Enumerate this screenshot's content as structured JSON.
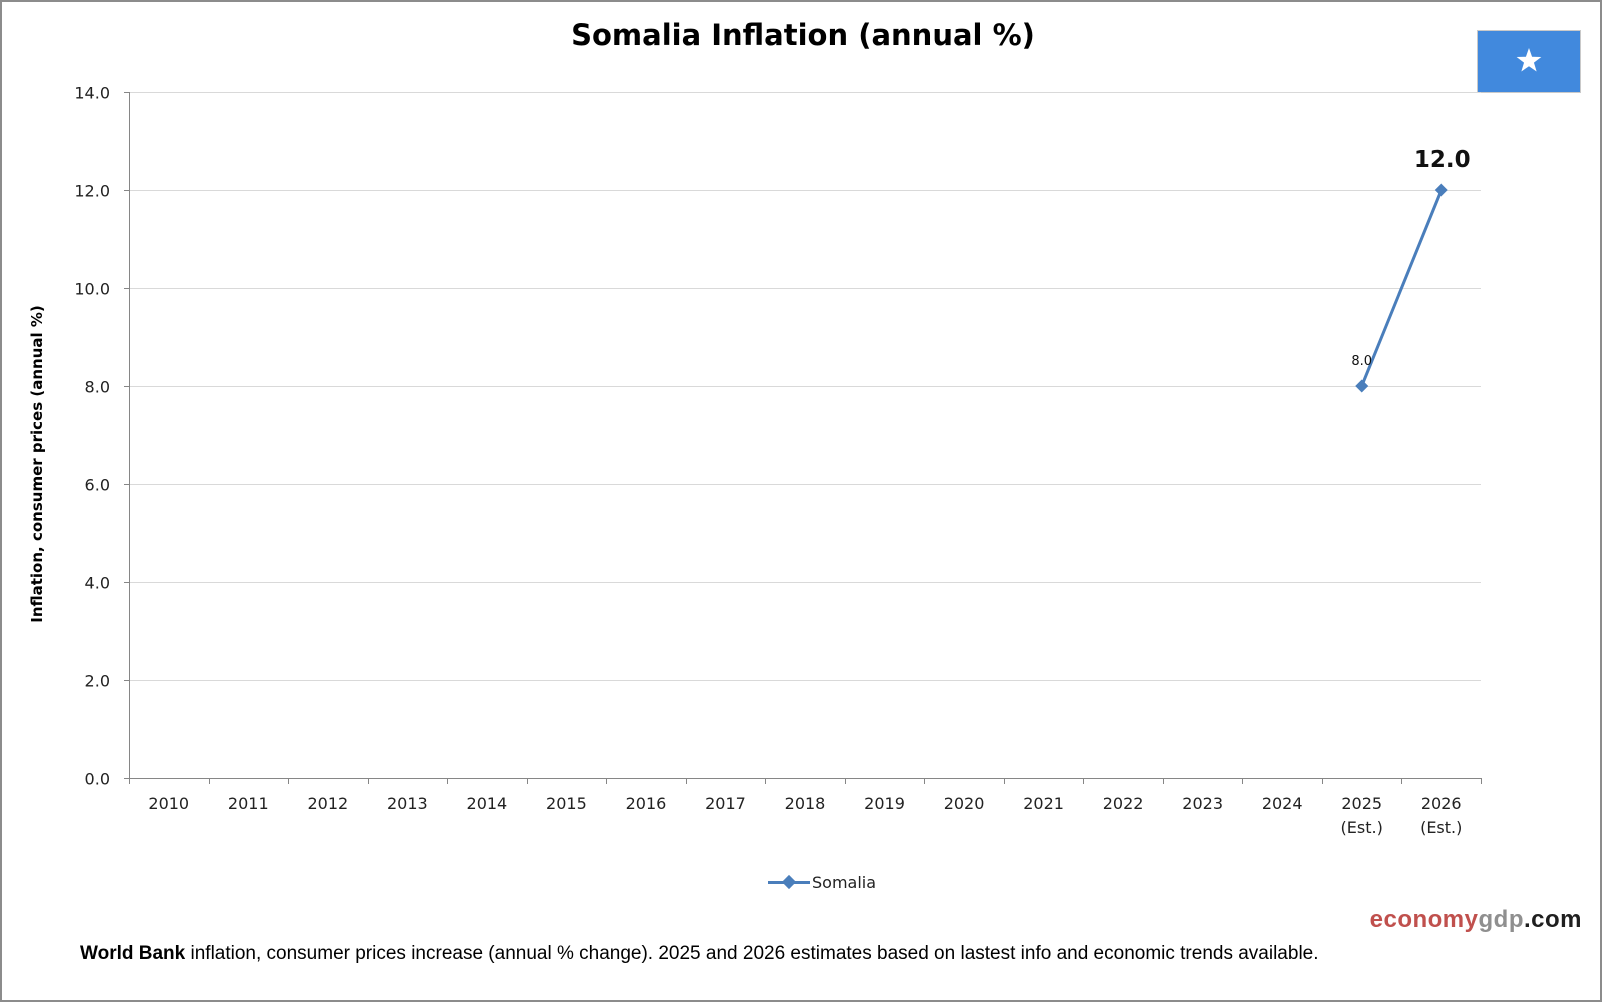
{
  "chart_data": {
    "type": "line",
    "title": "Somalia Inflation (annual %)",
    "ylabel": "Inflation, consumer prices (annual %)",
    "xlabel": "",
    "ylim": [
      0,
      14
    ],
    "yticks": [
      "0.0",
      "2.0",
      "4.0",
      "6.0",
      "8.0",
      "10.0",
      "12.0",
      "14.0"
    ],
    "categories": [
      [
        "2010"
      ],
      [
        "2011"
      ],
      [
        "2012"
      ],
      [
        "2013"
      ],
      [
        "2014"
      ],
      [
        "2015"
      ],
      [
        "2016"
      ],
      [
        "2017"
      ],
      [
        "2018"
      ],
      [
        "2019"
      ],
      [
        "2020"
      ],
      [
        "2021"
      ],
      [
        "2022"
      ],
      [
        "2023"
      ],
      [
        "2024"
      ],
      [
        "2025",
        "(Est.)"
      ],
      [
        "2026",
        "(Est.)"
      ]
    ],
    "series": [
      {
        "name": "Somalia",
        "color": "#4a7ebb",
        "values": [
          null,
          null,
          null,
          null,
          null,
          null,
          null,
          null,
          null,
          null,
          null,
          null,
          null,
          null,
          null,
          8.0,
          12.0
        ]
      }
    ],
    "data_labels": [
      {
        "index": 15,
        "text": "8.0",
        "style": "small"
      },
      {
        "index": 16,
        "text": "12.0",
        "style": "large"
      }
    ],
    "grid": true,
    "legend_position": "bottom"
  },
  "flag": {
    "icon": "somalia-flag",
    "background": "#4189dd",
    "star_color": "#ffffff"
  },
  "watermark": {
    "part1": "economy",
    "part2": "gdp",
    "part3": ".com"
  },
  "footnote": {
    "bold": "World Bank",
    "text": " inflation, consumer prices increase (annual % change).  2025 and 2026 estimates based on lastest info and economic trends available."
  }
}
